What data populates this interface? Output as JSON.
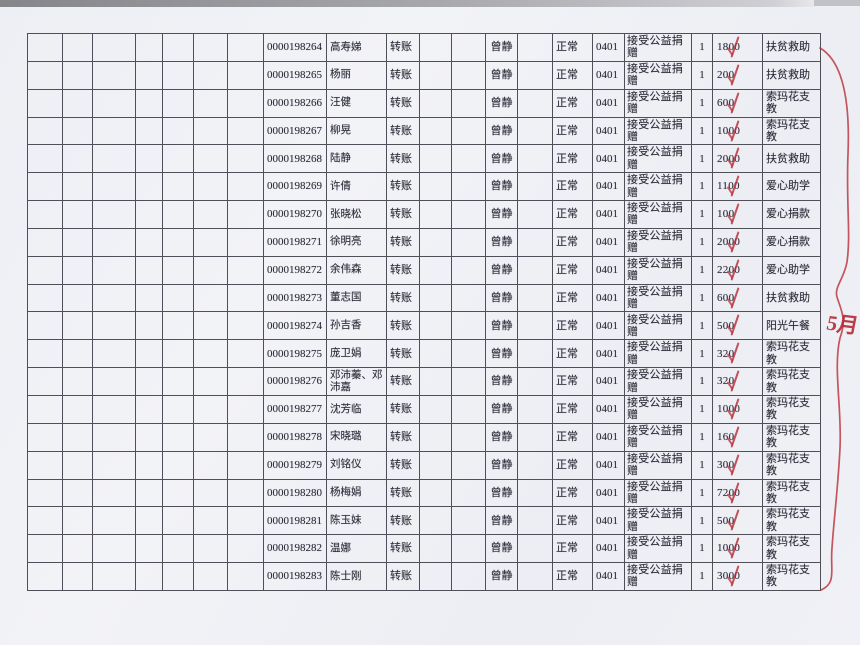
{
  "annotations": {
    "month_label": "5月",
    "red_color": "#ba2d37"
  },
  "table": {
    "shared": {
      "transfer_method": "转账",
      "operator": "曾静",
      "status": "正常",
      "date": "0401",
      "summary": "接受公益捐赠",
      "quantity": "1"
    },
    "rows": [
      {
        "receipt": "0000198264",
        "name": "高寿娣",
        "amount": "1800",
        "category": "扶贫救助"
      },
      {
        "receipt": "0000198265",
        "name": "杨丽",
        "amount": "200",
        "category": "扶贫救助"
      },
      {
        "receipt": "0000198266",
        "name": "汪健",
        "amount": "600",
        "category": "索玛花支教"
      },
      {
        "receipt": "0000198267",
        "name": "柳晃",
        "amount": "1000",
        "category": "索玛花支教"
      },
      {
        "receipt": "0000198268",
        "name": "陆静",
        "amount": "2000",
        "category": "扶贫救助"
      },
      {
        "receipt": "0000198269",
        "name": "许倩",
        "amount": "1100",
        "category": "爱心助学"
      },
      {
        "receipt": "0000198270",
        "name": "张晓松",
        "amount": "100",
        "category": "爱心捐款"
      },
      {
        "receipt": "0000198271",
        "name": "徐明亮",
        "amount": "2000",
        "category": "爱心捐款"
      },
      {
        "receipt": "0000198272",
        "name": "余伟森",
        "amount": "2200",
        "category": "爱心助学"
      },
      {
        "receipt": "0000198273",
        "name": "董志国",
        "amount": "600",
        "category": "扶贫救助"
      },
      {
        "receipt": "0000198274",
        "name": "孙吉香",
        "amount": "500",
        "category": "阳光午餐"
      },
      {
        "receipt": "0000198275",
        "name": "庞卫娟",
        "amount": "320",
        "category": "索玛花支教"
      },
      {
        "receipt": "0000198276",
        "name": "邓沛蓁、邓沛嘉",
        "amount": "320",
        "category": "索玛花支教"
      },
      {
        "receipt": "0000198277",
        "name": "沈芳临",
        "amount": "1000",
        "category": "索玛花支教"
      },
      {
        "receipt": "0000198278",
        "name": "宋晓璐",
        "amount": "160",
        "category": "索玛花支教"
      },
      {
        "receipt": "0000198279",
        "name": "刘铭仪",
        "amount": "300",
        "category": "索玛花支教"
      },
      {
        "receipt": "0000198280",
        "name": "杨梅娟",
        "amount": "7200",
        "category": "索玛花支教"
      },
      {
        "receipt": "0000198281",
        "name": "陈玉妹",
        "amount": "500",
        "category": "索玛花支教"
      },
      {
        "receipt": "0000198282",
        "name": "温娜",
        "amount": "1000",
        "category": "索玛花支教"
      },
      {
        "receipt": "0000198283",
        "name": "陈士刚",
        "amount": "3000",
        "category": "索玛花支教"
      }
    ]
  }
}
